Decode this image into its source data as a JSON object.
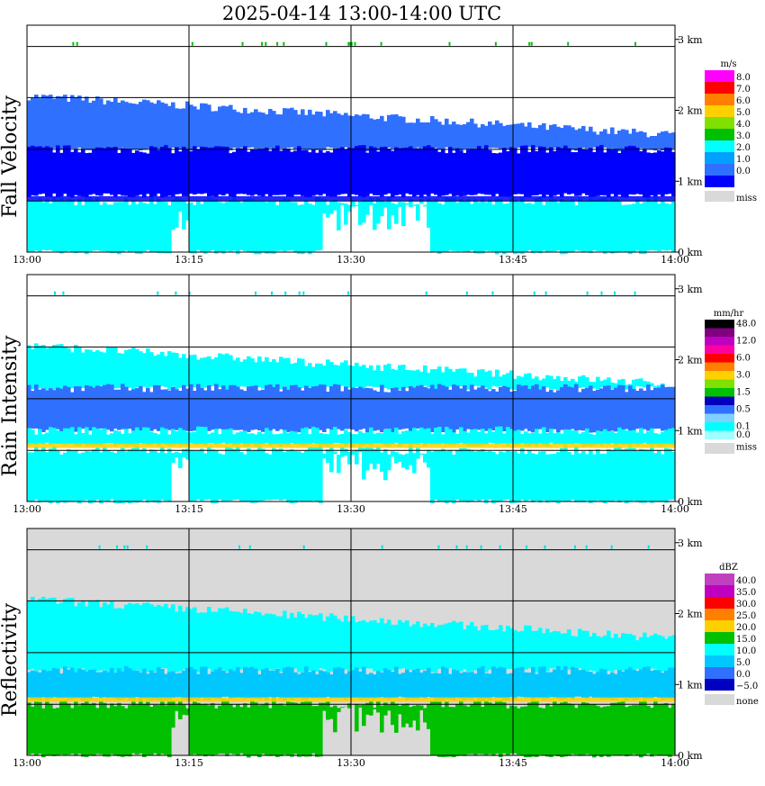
{
  "title": "2025-04-14   13:00-14:00 UTC",
  "time_axis": {
    "start": "13:00",
    "end": "14:00",
    "tick_labels": [
      "13:00",
      "13:15",
      "13:30",
      "13:45",
      "14:00"
    ]
  },
  "height_axis": {
    "range_km": [
      0,
      3.2
    ],
    "tick_labels": [
      "0 km",
      "1 km",
      "2 km",
      "3 km"
    ],
    "gridline_km": [
      0.72,
      1.45,
      2.18,
      2.9
    ]
  },
  "colors": {
    "background": "#ffffff",
    "grid": "#000000",
    "missing": "#d9d9d9"
  },
  "chart_data": [
    {
      "type": "heatmap",
      "panel_label": "Fall Velocity",
      "legend_unit": "m/s",
      "legend": [
        {
          "label": "8.0",
          "color": "#ff00ff"
        },
        {
          "label": "7.0",
          "color": "#ff0000"
        },
        {
          "label": "6.0",
          "color": "#ff8000"
        },
        {
          "label": "5.0",
          "color": "#ffd000"
        },
        {
          "label": "4.0",
          "color": "#80e000"
        },
        {
          "label": "3.0",
          "color": "#00c000"
        },
        {
          "label": "2.0",
          "color": "#00ffff"
        },
        {
          "label": "1.0",
          "color": "#00a0ff"
        },
        {
          "label": "0.0",
          "color": "#3070ff"
        },
        {
          "label": "",
          "color": "#0000ff"
        },
        {
          "label": "miss",
          "color": "#d9d9d9"
        }
      ],
      "echo_top_km": 2.2,
      "bright_band_km": 0.75,
      "layers": [
        {
          "from_km": 1.45,
          "to_km": 2.2,
          "color": "#3070ff"
        },
        {
          "from_km": 0.8,
          "to_km": 1.45,
          "color": "#0000ff"
        },
        {
          "from_km": 0,
          "to_km": 0.72,
          "color": "#00ffff"
        }
      ],
      "insect_km": 2.95
    },
    {
      "type": "heatmap",
      "panel_label": "Rain Intensity",
      "legend_unit": "mm/hr",
      "legend": [
        {
          "label": "48.0",
          "color": "#000000"
        },
        {
          "label": "",
          "color": "#800080"
        },
        {
          "label": "12.0",
          "color": "#c000c0"
        },
        {
          "label": "",
          "color": "#ff00a0"
        },
        {
          "label": "6.0",
          "color": "#ff0000"
        },
        {
          "label": "",
          "color": "#ff8000"
        },
        {
          "label": "3.0",
          "color": "#ffd000"
        },
        {
          "label": "",
          "color": "#80e000"
        },
        {
          "label": "1.5",
          "color": "#00c000"
        },
        {
          "label": "",
          "color": "#0000c0"
        },
        {
          "label": "0.5",
          "color": "#3070ff"
        },
        {
          "label": "",
          "color": "#80d0ff"
        },
        {
          "label": "0.1",
          "color": "#00ffff"
        },
        {
          "label": "0.0",
          "color": "#a0ffff"
        },
        {
          "label": "miss",
          "color": "#d9d9d9"
        }
      ],
      "echo_top_km": 2.2,
      "bright_band_km": 0.78,
      "layers": [
        {
          "from_km": 1.6,
          "to_km": 2.2,
          "color": "#00ffff"
        },
        {
          "from_km": 1.0,
          "to_km": 1.6,
          "color": "#3070ff"
        },
        {
          "from_km": 0.8,
          "to_km": 1.0,
          "color": "#00ffff"
        },
        {
          "from_km": 0,
          "to_km": 0.72,
          "color": "#00ffff"
        }
      ],
      "insect_km": 2.95
    },
    {
      "type": "heatmap",
      "panel_label": "Reflectivity",
      "legend_unit": "dBZ",
      "legend": [
        {
          "label": "40.0",
          "color": "#c040c0"
        },
        {
          "label": "35.0",
          "color": "#c000c0"
        },
        {
          "label": "30.0",
          "color": "#ff0000"
        },
        {
          "label": "25.0",
          "color": "#ff8000"
        },
        {
          "label": "20.0",
          "color": "#ffd000"
        },
        {
          "label": "15.0",
          "color": "#00c000"
        },
        {
          "label": "10.0",
          "color": "#00ffff"
        },
        {
          "label": "5.0",
          "color": "#00c8ff"
        },
        {
          "label": "0.0",
          "color": "#3070ff"
        },
        {
          "label": "−5.0",
          "color": "#0000c0"
        },
        {
          "label": "none",
          "color": "#d9d9d9"
        }
      ],
      "echo_top_km": 2.2,
      "bright_band_km": 0.78,
      "layers": [
        {
          "from_km": 1.2,
          "to_km": 2.2,
          "color": "#00ffff"
        },
        {
          "from_km": 0.8,
          "to_km": 1.2,
          "color": "#00c8ff"
        },
        {
          "from_km": 0,
          "to_km": 0.72,
          "color": "#00c000"
        }
      ],
      "insect_km": 2.95
    }
  ]
}
